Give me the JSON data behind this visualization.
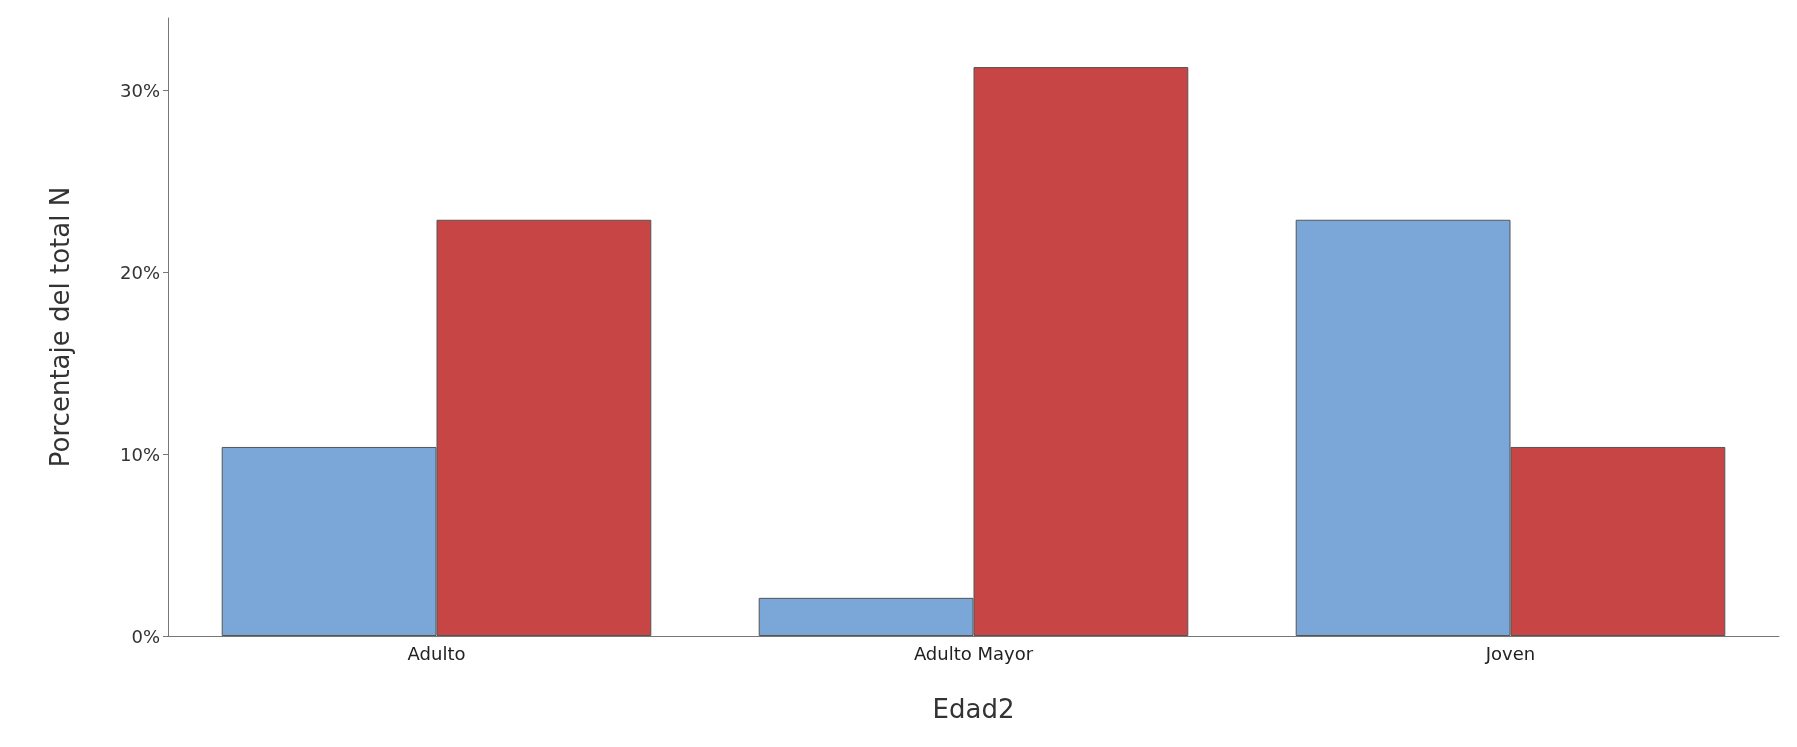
{
  "chart_data": {
    "type": "bar",
    "xlabel": "Edad2",
    "ylabel": "Porcentaje del total N",
    "categories": [
      "Adulto",
      "Adulto Mayor",
      "Joven"
    ],
    "series": [
      {
        "color": "#7ba6d8",
        "values": [
          10.4,
          2.1,
          22.9
        ]
      },
      {
        "color": "#c84545",
        "values": [
          22.9,
          31.3,
          10.4
        ]
      }
    ],
    "ylim": [
      0,
      34
    ],
    "yticks": [
      {
        "value": 0,
        "label": "0%"
      },
      {
        "value": 10,
        "label": "10%"
      },
      {
        "value": 20,
        "label": "20%"
      },
      {
        "value": 30,
        "label": "30%"
      }
    ],
    "grid": false
  }
}
